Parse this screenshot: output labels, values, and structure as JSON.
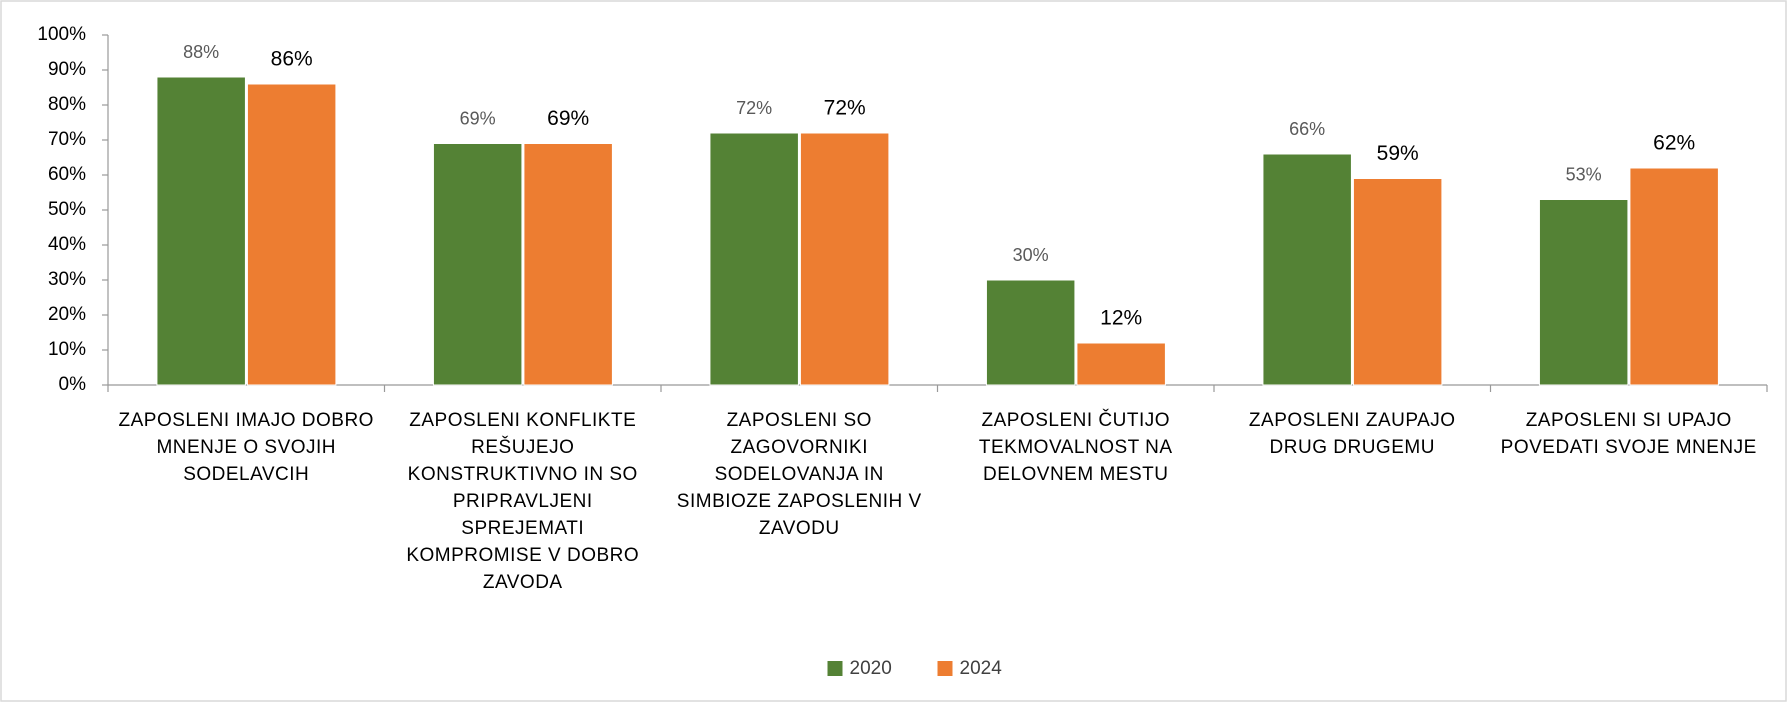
{
  "chart_data": {
    "type": "bar",
    "categories": [
      "ZAPOSLENI IMAJO DOBRO MNENJE O SVOJIH SODELAVCIH",
      "ZAPOSLENI KONFLIKTE REŠUJEJO KONSTRUKTIVNO IN SO PRIPRAVLJENI SPREJEMATI KOMPROMISE V DOBRO ZAVODA",
      "ZAPOSLENI SO ZAGOVORNIKI SODELOVANJA IN SIMBIOZE ZAPOSLENIH V ZAVODU",
      "ZAPOSLENI ČUTIJO TEKMOVALNOST NA DELOVNEM MESTU",
      "ZAPOSLENI ZAUPAJO DRUG DRUGEMU",
      "ZAPOSLENI SI UPAJO POVEDATI SVOJE MNENJE"
    ],
    "series": [
      {
        "name": "2020",
        "color": "#548235",
        "values": [
          88,
          69,
          72,
          30,
          66,
          53
        ],
        "value_labels": [
          "88%",
          "69%",
          "72%",
          "30%",
          "66%",
          "53%"
        ]
      },
      {
        "name": "2024",
        "color": "#ed7d31",
        "values": [
          86,
          69,
          72,
          12,
          59,
          62
        ],
        "value_labels": [
          "86%",
          "69%",
          "72%",
          "12%",
          "59%",
          "62%"
        ]
      }
    ],
    "ylim": [
      0,
      100
    ],
    "yticks": [
      {
        "value": 0,
        "label": "0%"
      },
      {
        "value": 10,
        "label": "10%"
      },
      {
        "value": 20,
        "label": "20%"
      },
      {
        "value": 30,
        "label": "30%"
      },
      {
        "value": 40,
        "label": "40%"
      },
      {
        "value": 50,
        "label": "50%"
      },
      {
        "value": 60,
        "label": "60%"
      },
      {
        "value": 70,
        "label": "70%"
      },
      {
        "value": 80,
        "label": "80%"
      },
      {
        "value": 90,
        "label": "90%"
      },
      {
        "value": 100,
        "label": "100%"
      }
    ],
    "legend": "bottom"
  }
}
